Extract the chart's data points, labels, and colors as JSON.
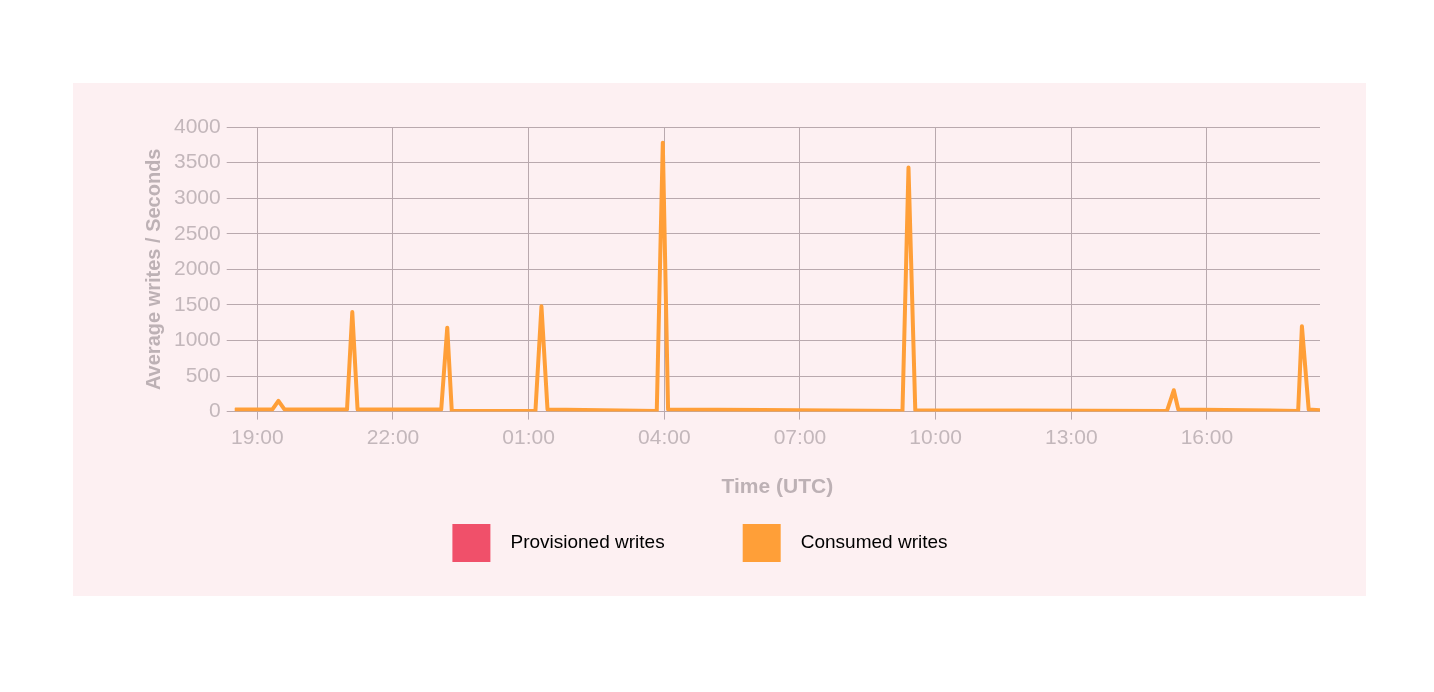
{
  "chart_data": {
    "type": "line",
    "xlabel": "Time (UTC)",
    "ylabel": "Average writes / Seconds",
    "xlim": [
      "--01-01T18:30",
      "--01-02T18:30"
    ],
    "xticks": [
      {
        "value": "--01-01T19:00",
        "label": "19:00"
      },
      {
        "value": "--01-01T22:00",
        "label": "22:00"
      },
      {
        "value": "--01-02T01:00",
        "label": "01:00"
      },
      {
        "value": "--01-02T04:00",
        "label": "04:00"
      },
      {
        "value": "--01-02T07:00",
        "label": "07:00"
      },
      {
        "value": "--01-02T10:00",
        "label": "10:00"
      },
      {
        "value": "--01-02T13:00",
        "label": "13:00"
      },
      {
        "value": "--01-02T16:00",
        "label": "16:00"
      }
    ],
    "ylim": [
      0,
      4000
    ],
    "yticks": [
      0,
      500,
      1000,
      1500,
      2000,
      2500,
      3000,
      3500,
      4000
    ],
    "grid": true,
    "legend": "bottom",
    "marker": "none",
    "line_style": "solid",
    "series": [
      {
        "name": "Provisioned writes",
        "color": "#f0506a"
      },
      {
        "name": "Consumed writes",
        "color": "#ff9f38",
        "x": [
          "--01-01T18:31",
          "--01-01T19:20",
          "--01-01T19:28",
          "--01-01T19:36",
          "--01-01T20:59",
          "--01-01T21:06",
          "--01-01T21:13",
          "--01-01T23:04",
          "--01-01T23:12",
          "--01-01T23:18",
          "--01-02T01:09",
          "--01-02T01:17",
          "--01-02T01:25",
          "--01-02T03:50",
          "--01-02T03:58",
          "--01-02T04:05",
          "--01-02T09:16",
          "--01-02T09:24",
          "--01-02T09:33",
          "--01-02T15:07",
          "--01-02T15:16",
          "--01-02T15:22",
          "--01-02T18:01",
          "--01-02T18:06",
          "--01-02T18:15",
          "--01-02T18:30"
        ],
        "values": [
          30,
          30,
          150,
          30,
          30,
          1400,
          30,
          30,
          1180,
          10,
          10,
          1480,
          30,
          10,
          3780,
          30,
          10,
          3430,
          20,
          10,
          300,
          30,
          10,
          1200,
          30,
          20
        ]
      }
    ]
  }
}
